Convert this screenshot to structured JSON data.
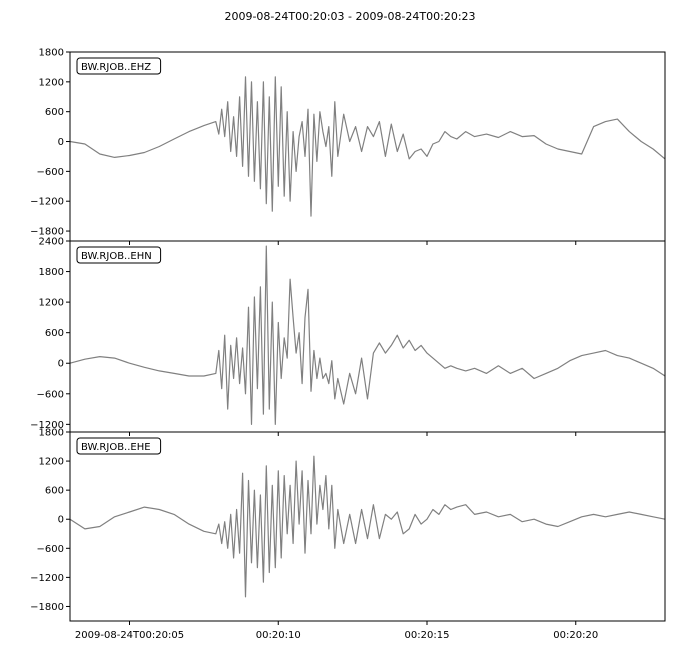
{
  "figure": {
    "title": "2009-08-24T00:20:03  -  2009-08-24T00:20:23"
  },
  "chart_data": [
    {
      "type": "line",
      "title": "BW.RJOB..EHZ",
      "xlabel": "",
      "ylabel": "",
      "xlim": [
        3,
        23
      ],
      "ylim": [
        -2000,
        1800
      ],
      "yticks": [
        -1800,
        -1200,
        -600,
        0,
        600,
        1200,
        1800
      ],
      "ytick_labels": [
        "−1800",
        "−1200",
        "−600",
        "0",
        "600",
        "1200",
        "1800"
      ],
      "grid": false,
      "line_color": "#808080",
      "series": [
        {
          "x": [
            3.0,
            3.5,
            4.0,
            4.5,
            5.0,
            5.5,
            6.0,
            6.5,
            7.0,
            7.5,
            7.9,
            8.0,
            8.1,
            8.2,
            8.3,
            8.4,
            8.5,
            8.6,
            8.7,
            8.8,
            8.9,
            9.0,
            9.1,
            9.2,
            9.3,
            9.4,
            9.5,
            9.6,
            9.7,
            9.8,
            9.9,
            10.0,
            10.1,
            10.2,
            10.3,
            10.4,
            10.5,
            10.6,
            10.7,
            10.8,
            10.9,
            11.0,
            11.1,
            11.2,
            11.3,
            11.4,
            11.5,
            11.6,
            11.7,
            11.8,
            11.9,
            12.0,
            12.2,
            12.4,
            12.6,
            12.8,
            13.0,
            13.2,
            13.4,
            13.6,
            13.8,
            14.0,
            14.2,
            14.4,
            14.6,
            14.8,
            15.0,
            15.2,
            15.4,
            15.6,
            15.8,
            16.0,
            16.3,
            16.6,
            17.0,
            17.4,
            17.8,
            18.2,
            18.6,
            19.0,
            19.4,
            19.8,
            20.2,
            20.6,
            21.0,
            21.4,
            21.8,
            22.2,
            22.6,
            23.0
          ],
          "y": [
            0,
            -50,
            -250,
            -320,
            -280,
            -220,
            -100,
            50,
            200,
            320,
            400,
            150,
            650,
            100,
            800,
            -200,
            500,
            -300,
            900,
            -500,
            1300,
            -700,
            1200,
            -800,
            800,
            -950,
            1200,
            -1250,
            900,
            -1400,
            1300,
            -900,
            1100,
            -1100,
            600,
            -1200,
            200,
            -600,
            100,
            400,
            -300,
            650,
            -1500,
            550,
            -400,
            600,
            200,
            -100,
            300,
            -700,
            800,
            -300,
            550,
            0,
            300,
            -200,
            300,
            100,
            400,
            -300,
            350,
            -200,
            150,
            -350,
            -200,
            -150,
            -300,
            -50,
            0,
            200,
            100,
            50,
            200,
            100,
            150,
            80,
            200,
            100,
            120,
            -50,
            -150,
            -200,
            -250,
            300,
            400,
            450,
            200,
            0,
            -150,
            -350
          ]
        }
      ]
    },
    {
      "type": "line",
      "title": "BW.RJOB..EHN",
      "xlabel": "",
      "ylabel": "",
      "xlim": [
        3,
        23
      ],
      "ylim": [
        -1350,
        2400
      ],
      "yticks": [
        -1200,
        -600,
        0,
        600,
        1200,
        1800,
        2400
      ],
      "ytick_labels": [
        "−1200",
        "−600",
        "0",
        "600",
        "1200",
        "1800",
        "2400"
      ],
      "grid": false,
      "line_color": "#808080",
      "series": [
        {
          "x": [
            3.0,
            3.5,
            4.0,
            4.5,
            5.0,
            5.5,
            6.0,
            6.5,
            7.0,
            7.5,
            7.9,
            8.0,
            8.1,
            8.2,
            8.3,
            8.4,
            8.5,
            8.6,
            8.7,
            8.8,
            8.9,
            9.0,
            9.1,
            9.2,
            9.3,
            9.4,
            9.5,
            9.6,
            9.7,
            9.8,
            9.9,
            10.0,
            10.1,
            10.2,
            10.3,
            10.4,
            10.5,
            10.6,
            10.7,
            10.8,
            10.9,
            11.0,
            11.1,
            11.2,
            11.3,
            11.4,
            11.5,
            11.6,
            11.7,
            11.8,
            11.9,
            12.0,
            12.2,
            12.4,
            12.6,
            12.8,
            13.0,
            13.2,
            13.4,
            13.6,
            13.8,
            14.0,
            14.2,
            14.4,
            14.6,
            14.8,
            15.0,
            15.2,
            15.4,
            15.6,
            15.8,
            16.0,
            16.3,
            16.6,
            17.0,
            17.4,
            17.8,
            18.2,
            18.6,
            19.0,
            19.4,
            19.8,
            20.2,
            20.6,
            21.0,
            21.4,
            21.8,
            22.2,
            22.6,
            23.0
          ],
          "y": [
            0,
            80,
            130,
            100,
            0,
            -80,
            -150,
            -200,
            -250,
            -250,
            -200,
            250,
            -500,
            550,
            -900,
            350,
            -300,
            500,
            -400,
            300,
            -600,
            1100,
            -1200,
            1300,
            -500,
            1500,
            -1000,
            2300,
            -900,
            1200,
            -1200,
            800,
            -300,
            500,
            100,
            1650,
            900,
            200,
            600,
            -400,
            900,
            1450,
            -550,
            250,
            -300,
            100,
            -300,
            -200,
            -400,
            50,
            -700,
            -300,
            -800,
            -200,
            -600,
            100,
            -700,
            200,
            400,
            200,
            350,
            550,
            300,
            450,
            250,
            350,
            200,
            100,
            0,
            -100,
            -50,
            -100,
            -150,
            -100,
            -200,
            -50,
            -200,
            -100,
            -300,
            -200,
            -100,
            50,
            150,
            200,
            250,
            150,
            100,
            0,
            -100,
            -250
          ]
        }
      ]
    },
    {
      "type": "line",
      "title": "BW.RJOB..EHE",
      "xlabel": "",
      "ylabel": "",
      "xlim": [
        3,
        23
      ],
      "ylim": [
        -2100,
        1800
      ],
      "yticks": [
        -1800,
        -1200,
        -600,
        0,
        600,
        1200,
        1800
      ],
      "ytick_labels": [
        "−1800",
        "−1200",
        "−600",
        "0",
        "600",
        "1200",
        "1800"
      ],
      "xticks": [
        5,
        10,
        15,
        20
      ],
      "xtick_labels": [
        "2009-08-24T00:20:05",
        "00:20:10",
        "00:20:15",
        "00:20:20"
      ],
      "grid": false,
      "line_color": "#808080",
      "series": [
        {
          "x": [
            3.0,
            3.5,
            4.0,
            4.5,
            5.0,
            5.5,
            6.0,
            6.5,
            7.0,
            7.5,
            7.9,
            8.0,
            8.1,
            8.2,
            8.3,
            8.4,
            8.5,
            8.6,
            8.7,
            8.8,
            8.9,
            9.0,
            9.1,
            9.2,
            9.3,
            9.4,
            9.5,
            9.6,
            9.7,
            9.8,
            9.9,
            10.0,
            10.1,
            10.2,
            10.3,
            10.4,
            10.5,
            10.6,
            10.7,
            10.8,
            10.9,
            11.0,
            11.1,
            11.2,
            11.3,
            11.4,
            11.5,
            11.6,
            11.7,
            11.8,
            11.9,
            12.0,
            12.2,
            12.4,
            12.6,
            12.8,
            13.0,
            13.2,
            13.4,
            13.6,
            13.8,
            14.0,
            14.2,
            14.4,
            14.6,
            14.8,
            15.0,
            15.2,
            15.4,
            15.6,
            15.8,
            16.0,
            16.3,
            16.6,
            17.0,
            17.4,
            17.8,
            18.2,
            18.6,
            19.0,
            19.4,
            19.8,
            20.2,
            20.6,
            21.0,
            21.4,
            21.8,
            22.2,
            22.6,
            23.0
          ],
          "y": [
            0,
            -200,
            -150,
            50,
            150,
            250,
            200,
            100,
            -100,
            -250,
            -300,
            -100,
            -500,
            -50,
            -600,
            100,
            -800,
            200,
            -700,
            950,
            -1600,
            800,
            -900,
            600,
            -1000,
            500,
            -1300,
            1100,
            -1100,
            700,
            -1000,
            1000,
            -800,
            900,
            -300,
            700,
            -500,
            1200,
            -100,
            1000,
            -700,
            800,
            -300,
            1300,
            -100,
            700,
            200,
            900,
            -200,
            700,
            -600,
            200,
            -500,
            100,
            -500,
            200,
            -400,
            300,
            -400,
            100,
            0,
            150,
            -300,
            -200,
            100,
            -100,
            0,
            200,
            100,
            300,
            200,
            250,
            300,
            100,
            150,
            50,
            100,
            -50,
            0,
            -100,
            -150,
            -50,
            50,
            100,
            50,
            100,
            150,
            100,
            50,
            0
          ]
        }
      ]
    }
  ]
}
